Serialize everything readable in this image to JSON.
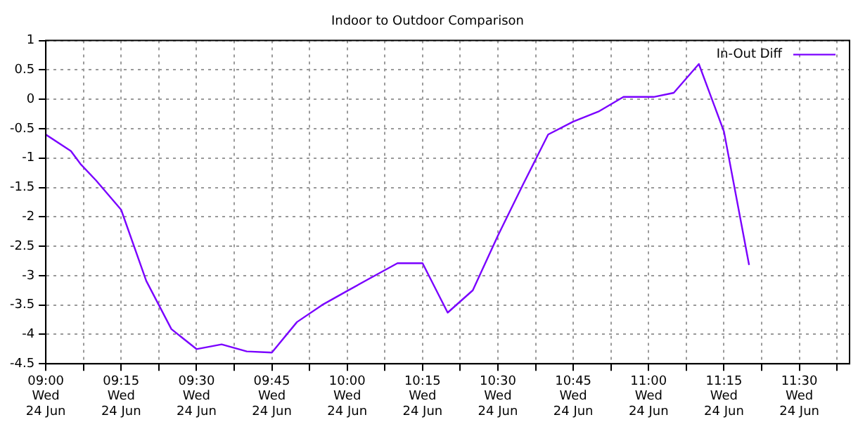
{
  "chart_data": {
    "type": "line",
    "title": "Indoor to Outdoor Comparison",
    "x": [
      "--06-24T09:00",
      "--06-24T09:05",
      "--06-24T09:07",
      "--06-24T09:10",
      "--06-24T09:15",
      "--06-24T09:20",
      "--06-24T09:25",
      "--06-24T09:30",
      "--06-24T09:35",
      "--06-24T09:40",
      "--06-24T09:45",
      "--06-24T09:50",
      "--06-24T09:55",
      "--06-24T10:00",
      "--06-24T10:04",
      "--06-24T10:10",
      "--06-24T10:15",
      "--06-24T10:20",
      "--06-24T10:25",
      "--06-24T10:30",
      "--06-24T10:35",
      "--06-24T10:40",
      "--06-24T10:45",
      "--06-24T10:50",
      "--06-24T10:55",
      "--06-24T11:01",
      "--06-24T11:05",
      "--06-24T11:10",
      "--06-24T11:15",
      "--06-24T11:20"
    ],
    "series": [
      {
        "name": "In-Out Diff",
        "color": "#7a00ff",
        "values": [
          -0.6,
          -0.88,
          -1.11,
          -1.38,
          -1.88,
          -3.09,
          -3.91,
          -4.25,
          -4.17,
          -4.29,
          -4.31,
          -3.79,
          -3.5,
          -3.26,
          -3.07,
          -2.79,
          -2.79,
          -3.63,
          -3.25,
          -2.32,
          -1.45,
          -0.6,
          -0.38,
          -0.21,
          0.04,
          0.04,
          0.11,
          0.6,
          -0.55,
          -2.82
        ]
      }
    ],
    "xlim": [
      "--06-24T09:00",
      "--06-24T11:40"
    ],
    "xticks": [
      {
        "value": "--06-24T09:00",
        "label": "09:00\nWed\n24 Jun"
      },
      {
        "value": "--06-24T09:15",
        "label": "09:15\nWed\n24 Jun"
      },
      {
        "value": "--06-24T09:30",
        "label": "09:30\nWed\n24 Jun"
      },
      {
        "value": "--06-24T09:45",
        "label": "09:45\nWed\n24 Jun"
      },
      {
        "value": "--06-24T10:00",
        "label": "10:00\nWed\n24 Jun"
      },
      {
        "value": "--06-24T10:15",
        "label": "10:15\nWed\n24 Jun"
      },
      {
        "value": "--06-24T10:30",
        "label": "10:30\nWed\n24 Jun"
      },
      {
        "value": "--06-24T10:45",
        "label": "10:45\nWed\n24 Jun"
      },
      {
        "value": "--06-24T11:00",
        "label": "11:00\nWed\n24 Jun"
      },
      {
        "value": "--06-24T11:15",
        "label": "11:15\nWed\n24 Jun"
      },
      {
        "value": "--06-24T11:30",
        "label": "11:30\nWed\n24 Jun"
      }
    ],
    "ylim": [
      -4.5,
      1
    ],
    "yticks": [
      -4.5,
      -4,
      -3.5,
      -3,
      -2.5,
      -2,
      -1.5,
      -1,
      -0.5,
      0,
      0.5,
      1
    ],
    "grid": true,
    "legend": "top right",
    "marker": "none",
    "line_style": "solid"
  }
}
